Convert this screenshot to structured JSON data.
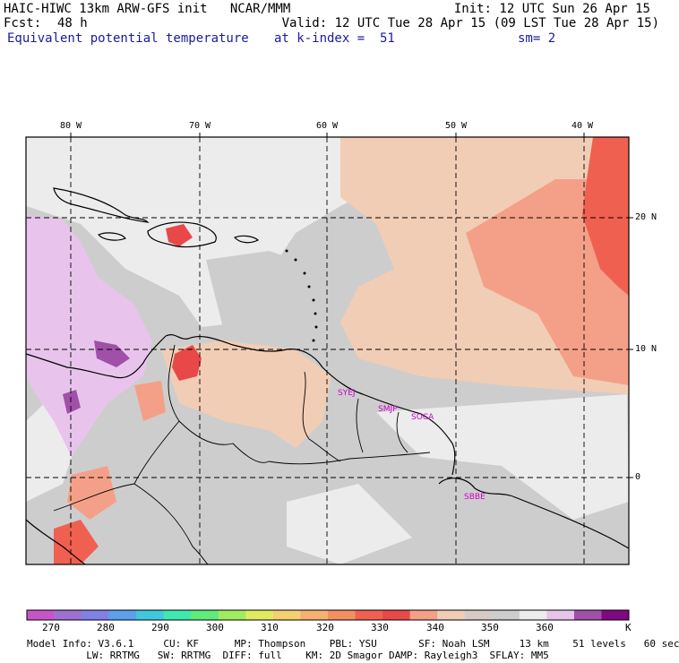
{
  "header": {
    "title": "HAIC-HIWC 13km ARW-GFS init   NCAR/MMM",
    "init": "Init: 12 UTC Sun 26 Apr 15",
    "fcst_label": "Fcst:",
    "fcst_value": "48 h",
    "valid": "Valid: 12 UTC Tue 28 Apr 15 (09 LST Tue 28 Apr 15)",
    "field": "Equivalent potential temperature",
    "level": "at k-index =  51",
    "smooth": "sm= 2"
  },
  "map": {
    "lon_labels": [
      "80 W",
      "70 W",
      "60 W",
      "50 W",
      "40 W"
    ],
    "lat_labels": [
      "20 N",
      "10 N",
      "0"
    ],
    "stations": [
      "SYEJ",
      "SMJP",
      "SOCA",
      "SBBE"
    ]
  },
  "colorbar": {
    "unit": "K",
    "labels": [
      "270",
      "280",
      "290",
      "300",
      "310",
      "320",
      "330",
      "340",
      "350",
      "360"
    ],
    "colors": [
      "#c855c8",
      "#a070d0",
      "#8080e8",
      "#5aa0ec",
      "#40c8e0",
      "#40e8b0",
      "#60ec7a",
      "#a0ec60",
      "#e0ec60",
      "#f4d070",
      "#f6b070",
      "#f49060",
      "#f06050",
      "#e84848",
      "#f4a088",
      "#f2cdb5",
      "#d6cac6",
      "#cdcdcd",
      "#ececec",
      "#e8c4ec",
      "#a050a8",
      "#800880"
    ]
  },
  "footer": {
    "line1": "Model Info: V3.6.1     CU: KF      MP: Thompson    PBL: YSU       SF: Noah LSM     13 km    51 levels   60 sec",
    "line2": "          LW: RRTMG   SW: RRTMG  DIFF: full    KM: 2D Smagor DAMP: Rayleigh3  SFLAY: MM5"
  }
}
